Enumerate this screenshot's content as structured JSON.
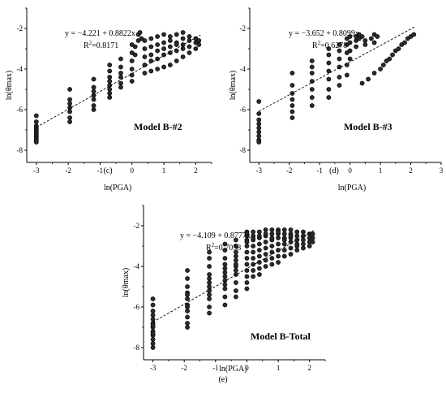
{
  "chart_data": [
    {
      "type": "scatter",
      "panel_label": "(c)",
      "model_label": "Model B-#2",
      "xlabel": "ln(PGA)",
      "ylabel": "ln(θmax)",
      "xlim": [
        -3.3,
        2.5
      ],
      "ylim": [
        -8.6,
        -1.0
      ],
      "xticks": [
        -3,
        -2,
        -1,
        0,
        1,
        2
      ],
      "yticks": [
        -8,
        -6,
        -4,
        -2
      ],
      "fit": {
        "equation": "y = −4.221 + 0.8822x",
        "r2_prefix": "R",
        "r2_sup": "2",
        "r2_value": "=0.8171",
        "intercept": -4.221,
        "slope": 0.8822,
        "x_range": [
          -3.0,
          2.15
        ]
      },
      "series": [
        {
          "x": [
            -3.0,
            -3.0,
            -3.0,
            -3.0,
            -3.0,
            -3.0,
            -3.0,
            -3.0,
            -3.0,
            -3.0,
            -3.0,
            -1.95,
            -1.95,
            -1.95,
            -1.95,
            -1.95,
            -1.95,
            -1.95,
            -1.2,
            -1.2,
            -1.2,
            -1.2,
            -1.2,
            -1.2,
            -1.2,
            -0.7,
            -0.7,
            -0.7,
            -0.7,
            -0.7,
            -0.7,
            -0.7,
            -0.7,
            -0.35,
            -0.35,
            -0.35,
            -0.35,
            -0.35,
            -0.35,
            0.0,
            0.0,
            0.0,
            0.0,
            0.0,
            0.0,
            0.2,
            0.25,
            0.3,
            0.2,
            0.1,
            0.1,
            0.4,
            0.4,
            0.4,
            0.4,
            0.4,
            0.6,
            0.6,
            0.6,
            0.6,
            0.6,
            0.8,
            0.8,
            0.8,
            0.8,
            0.8,
            1.0,
            1.0,
            1.0,
            1.0,
            1.0,
            1.2,
            1.2,
            1.2,
            1.2,
            1.2,
            1.4,
            1.4,
            1.4,
            1.4,
            1.4,
            1.6,
            1.6,
            1.6,
            1.6,
            1.6,
            1.8,
            1.8,
            1.8,
            1.8,
            2.0,
            2.0,
            2.0,
            2.1,
            2.1
          ],
          "y": [
            -6.3,
            -6.6,
            -6.8,
            -6.9,
            -7.0,
            -7.1,
            -7.2,
            -7.3,
            -7.4,
            -7.5,
            -7.6,
            -5.0,
            -5.5,
            -5.7,
            -5.9,
            -6.1,
            -6.4,
            -6.6,
            -4.5,
            -4.9,
            -5.1,
            -5.3,
            -5.5,
            -5.8,
            -6.0,
            -3.8,
            -4.1,
            -4.4,
            -4.6,
            -4.8,
            -5.0,
            -5.2,
            -5.4,
            -3.5,
            -3.9,
            -4.2,
            -4.4,
            -4.7,
            -4.9,
            -2.8,
            -3.2,
            -3.6,
            -4.0,
            -4.3,
            -4.6,
            -2.3,
            -2.2,
            -2.5,
            -2.6,
            -2.9,
            -3.3,
            -2.6,
            -3.0,
            -3.4,
            -3.8,
            -4.2,
            -2.5,
            -2.9,
            -3.3,
            -3.6,
            -4.1,
            -2.4,
            -2.8,
            -3.1,
            -3.5,
            -4.0,
            -2.3,
            -2.7,
            -3.0,
            -3.3,
            -3.9,
            -2.4,
            -2.6,
            -2.9,
            -3.2,
            -3.8,
            -2.3,
            -2.7,
            -2.8,
            -3.1,
            -3.6,
            -2.2,
            -2.5,
            -2.8,
            -3.0,
            -3.4,
            -2.4,
            -2.6,
            -2.9,
            -3.2,
            -2.5,
            -2.7,
            -3.0,
            -2.6,
            -2.8
          ]
        }
      ]
    },
    {
      "type": "scatter",
      "panel_label": "(d)",
      "model_label": "Model B-#3",
      "xlabel": "ln(PGA)",
      "ylabel": "ln(θmax)",
      "xlim": [
        -3.3,
        3.0
      ],
      "ylim": [
        -8.6,
        -1.0
      ],
      "xticks": [
        -3,
        -2,
        -1,
        0,
        1,
        2,
        3
      ],
      "yticks": [
        -8,
        -6,
        -4,
        -2
      ],
      "fit": {
        "equation": "y = −3.652 + 0.8099x",
        "r2_prefix": "R",
        "r2_sup": "2",
        "r2_value": "=0.6278",
        "intercept": -3.652,
        "slope": 0.8099,
        "x_range": [
          -3.0,
          2.15
        ]
      },
      "series": [
        {
          "x": [
            -3.0,
            -3.0,
            -3.0,
            -3.0,
            -3.0,
            -3.0,
            -3.0,
            -3.0,
            -3.0,
            -1.9,
            -1.9,
            -1.9,
            -1.9,
            -1.9,
            -1.9,
            -1.9,
            -1.25,
            -1.25,
            -1.25,
            -1.25,
            -1.25,
            -1.25,
            -1.25,
            -0.7,
            -0.7,
            -0.7,
            -0.7,
            -0.7,
            -0.7,
            -0.7,
            -0.35,
            -0.35,
            -0.35,
            -0.35,
            -0.35,
            -0.35,
            -0.1,
            -0.1,
            -0.1,
            -0.1,
            -0.1,
            0.0,
            0.0,
            0.0,
            0.0,
            0.2,
            0.2,
            0.2,
            0.3,
            0.3,
            0.4,
            0.5,
            0.5,
            0.7,
            0.8,
            0.9,
            0.8,
            0.4,
            0.6,
            0.8,
            1.0,
            1.1,
            1.2,
            1.3,
            1.4,
            1.5,
            1.6,
            1.7,
            1.8,
            1.9,
            2.0,
            2.1
          ],
          "y": [
            -5.6,
            -6.2,
            -6.5,
            -6.7,
            -6.9,
            -7.1,
            -7.3,
            -7.5,
            -7.6,
            -4.2,
            -4.8,
            -5.2,
            -5.5,
            -5.8,
            -6.1,
            -6.4,
            -3.6,
            -3.9,
            -4.2,
            -4.6,
            -5.0,
            -5.4,
            -5.8,
            -3.0,
            -3.3,
            -3.7,
            -4.1,
            -4.5,
            -5.0,
            -5.4,
            -2.8,
            -3.1,
            -3.5,
            -3.9,
            -4.4,
            -4.8,
            -2.5,
            -2.8,
            -3.2,
            -3.8,
            -4.3,
            -2.4,
            -2.7,
            -3.1,
            -3.5,
            -2.4,
            -2.6,
            -2.9,
            -2.3,
            -2.5,
            -2.4,
            -2.6,
            -2.8,
            -2.5,
            -2.3,
            -2.4,
            -2.7,
            -4.7,
            -4.5,
            -4.2,
            -4.0,
            -3.8,
            -3.6,
            -3.5,
            -3.3,
            -3.1,
            -3.0,
            -2.8,
            -2.7,
            -2.5,
            -2.4,
            -2.3
          ]
        }
      ]
    },
    {
      "type": "scatter",
      "panel_label": "(e)",
      "model_label": "Model B-Total",
      "xlabel": "ln(PGA)",
      "ylabel": "ln(θmax)",
      "xlim": [
        -3.3,
        2.5
      ],
      "ylim": [
        -8.6,
        -1.0
      ],
      "xticks": [
        -3,
        -2,
        -1,
        0,
        1,
        2
      ],
      "yticks": [
        -8,
        -6,
        -4,
        -2
      ],
      "fit": {
        "equation": "y = −4.109 + 0.8777x",
        "r2_prefix": "R",
        "r2_sup": "2",
        "r2_value": "=0.7058",
        "intercept": -4.109,
        "slope": 0.8777,
        "x_range": [
          -3.0,
          2.15
        ]
      },
      "series": [
        {
          "x": [
            -3.0,
            -3.0,
            -3.0,
            -3.0,
            -3.0,
            -3.0,
            -3.0,
            -3.0,
            -3.0,
            -3.0,
            -3.0,
            -3.0,
            -3.0,
            -3.0,
            -1.9,
            -1.9,
            -1.9,
            -1.9,
            -1.9,
            -1.9,
            -1.9,
            -1.9,
            -1.9,
            -1.9,
            -1.9,
            -1.9,
            -1.2,
            -1.2,
            -1.2,
            -1.2,
            -1.2,
            -1.2,
            -1.2,
            -1.2,
            -1.2,
            -1.2,
            -1.2,
            -1.2,
            -0.7,
            -0.7,
            -0.7,
            -0.7,
            -0.7,
            -0.7,
            -0.7,
            -0.7,
            -0.7,
            -0.7,
            -0.7,
            -0.7,
            -0.35,
            -0.35,
            -0.35,
            -0.35,
            -0.35,
            -0.35,
            -0.35,
            -0.35,
            -0.35,
            -0.35,
            -0.35,
            -0.35,
            0.0,
            0.0,
            0.0,
            0.0,
            0.0,
            0.0,
            0.0,
            0.0,
            0.0,
            0.0,
            0.0,
            0.0,
            0.0,
            0.2,
            0.2,
            0.2,
            0.2,
            0.2,
            0.2,
            0.2,
            0.2,
            0.2,
            0.2,
            0.4,
            0.4,
            0.4,
            0.4,
            0.4,
            0.4,
            0.4,
            0.4,
            0.4,
            0.6,
            0.6,
            0.6,
            0.6,
            0.6,
            0.6,
            0.6,
            0.6,
            0.8,
            0.8,
            0.8,
            0.8,
            0.8,
            0.8,
            0.8,
            0.8,
            1.0,
            1.0,
            1.0,
            1.0,
            1.0,
            1.0,
            1.0,
            1.0,
            1.2,
            1.2,
            1.2,
            1.2,
            1.2,
            1.2,
            1.2,
            1.4,
            1.4,
            1.4,
            1.4,
            1.4,
            1.4,
            1.4,
            1.6,
            1.6,
            1.6,
            1.6,
            1.6,
            1.6,
            1.8,
            1.8,
            1.8,
            1.8,
            1.8,
            2.0,
            2.0,
            2.0,
            2.0,
            2.1,
            2.1,
            2.1
          ],
          "y": [
            -5.6,
            -5.9,
            -6.2,
            -6.4,
            -6.6,
            -6.8,
            -7.0,
            -7.2,
            -7.4,
            -7.6,
            -7.8,
            -8.0,
            -6.9,
            -7.3,
            -4.2,
            -4.6,
            -5.0,
            -5.3,
            -5.6,
            -5.9,
            -6.2,
            -6.5,
            -6.8,
            -7.0,
            -5.4,
            -6.0,
            -3.3,
            -3.6,
            -4.0,
            -4.4,
            -4.8,
            -5.2,
            -5.6,
            -6.0,
            -6.3,
            -5.0,
            -5.4,
            -4.6,
            -2.9,
            -3.2,
            -3.6,
            -3.9,
            -4.3,
            -4.7,
            -5.1,
            -5.5,
            -5.9,
            -4.1,
            -4.5,
            -4.9,
            -2.7,
            -3.0,
            -3.3,
            -3.7,
            -4.0,
            -4.4,
            -4.8,
            -5.2,
            -5.5,
            -3.5,
            -3.9,
            -4.2,
            -2.3,
            -2.5,
            -2.7,
            -3.0,
            -3.3,
            -3.6,
            -3.9,
            -4.2,
            -4.5,
            -4.8,
            -5.1,
            -2.4,
            -2.8,
            -2.3,
            -2.5,
            -2.7,
            -3.0,
            -3.3,
            -3.6,
            -3.9,
            -4.2,
            -4.5,
            -2.6,
            -2.3,
            -2.6,
            -2.9,
            -3.2,
            -3.5,
            -3.8,
            -4.1,
            -4.4,
            -2.5,
            -2.2,
            -2.5,
            -2.8,
            -3.1,
            -3.4,
            -3.7,
            -4.0,
            -2.4,
            -2.2,
            -2.4,
            -2.7,
            -3.0,
            -3.3,
            -3.6,
            -3.9,
            -2.6,
            -2.2,
            -2.4,
            -2.6,
            -2.9,
            -3.2,
            -3.5,
            -3.8,
            -2.3,
            -2.2,
            -2.4,
            -2.6,
            -2.9,
            -3.2,
            -3.5,
            -2.7,
            -2.2,
            -2.4,
            -2.6,
            -2.8,
            -3.1,
            -3.4,
            -2.5,
            -2.3,
            -2.5,
            -2.7,
            -2.9,
            -3.2,
            -3.0,
            -2.3,
            -2.5,
            -2.7,
            -2.9,
            -3.1,
            -2.4,
            -2.6,
            -2.8,
            -3.0,
            -2.4,
            -2.6,
            -2.8
          ]
        }
      ]
    }
  ]
}
